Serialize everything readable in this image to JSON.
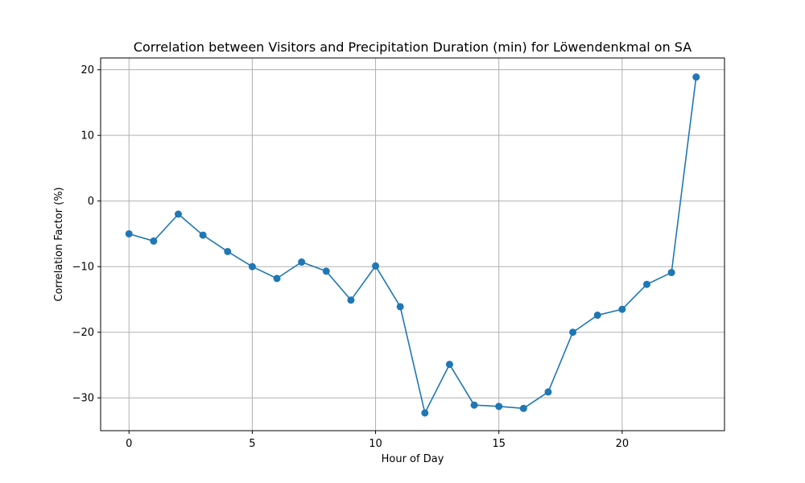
{
  "chart_data": {
    "type": "line",
    "title": "Correlation between Visitors and Precipitation Duration (min) for Löwendenkmal on SA",
    "xlabel": "Hour of Day",
    "ylabel": "Correlation Factor (%)",
    "xlim": [
      -1.15,
      24.15
    ],
    "ylim": [
      -35,
      21.8
    ],
    "xticks": [
      0,
      5,
      10,
      15,
      20
    ],
    "yticks": [
      -30,
      -20,
      -10,
      0,
      10,
      20
    ],
    "xtick_labels": [
      "0",
      "5",
      "10",
      "15",
      "20"
    ],
    "ytick_labels": [
      "−30",
      "−20",
      "−10",
      "0",
      "10",
      "20"
    ],
    "grid": true,
    "legend": "none",
    "series": [
      {
        "color": "#1f77b4",
        "marker": "circle",
        "x": [
          0,
          1,
          2,
          3,
          4,
          5,
          6,
          7,
          8,
          9,
          10,
          11,
          12,
          13,
          14,
          15,
          16,
          17,
          18,
          19,
          20,
          21,
          22,
          23
        ],
        "y": [
          -5.0,
          -6.1,
          -2.0,
          -5.2,
          -7.7,
          -10.0,
          -11.8,
          -9.3,
          -10.7,
          -15.1,
          -9.9,
          -16.1,
          -32.3,
          -24.9,
          -31.1,
          -31.3,
          -31.6,
          -29.1,
          -20.0,
          -17.4,
          -16.5,
          -12.7,
          -10.9,
          18.9
        ]
      }
    ]
  }
}
